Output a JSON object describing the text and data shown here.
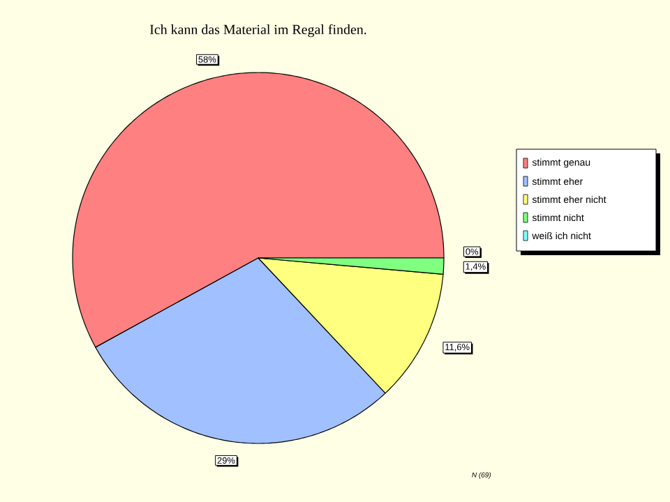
{
  "chart_data": {
    "type": "pie",
    "title": "Ich kann das Material im Regal finden.",
    "categories": [
      "stimmt genau",
      "stimmt eher",
      "stimmt eher nicht",
      "stimmt nicht",
      "weiß ich nicht"
    ],
    "values": [
      58,
      29,
      11.6,
      1.4,
      0
    ],
    "value_labels": [
      "58%",
      "29%",
      "11,6%",
      "1,4%",
      "0%"
    ],
    "colors": [
      "#ff8080",
      "#a0c0ff",
      "#ffff80",
      "#80ff80",
      "#80ffff"
    ],
    "legend": "right",
    "annotations": [
      "N (69)"
    ]
  }
}
